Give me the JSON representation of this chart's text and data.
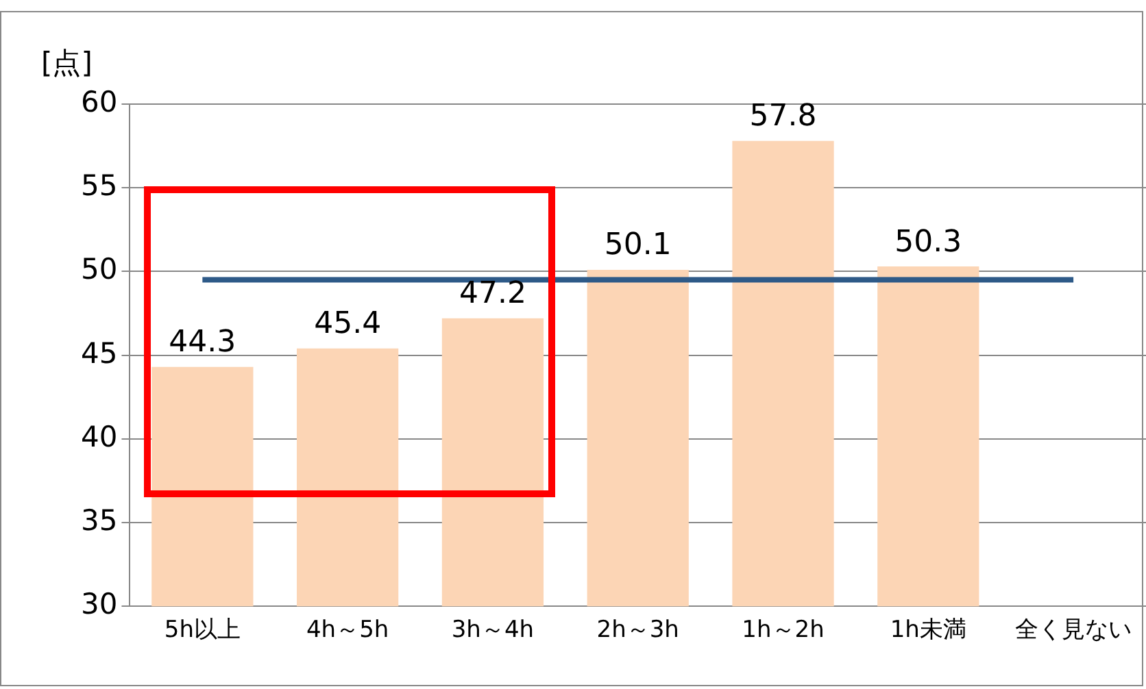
{
  "chart_data": {
    "type": "bar",
    "ylabel": "[点]",
    "categories": [
      "5h以上",
      "4h～5h",
      "3h～4h",
      "2h～3h",
      "1h～2h",
      "1h未満",
      "全く見ない"
    ],
    "values": [
      44.3,
      45.4,
      47.2,
      50.1,
      57.8,
      50.3,
      null
    ],
    "color": "#fcd5b5",
    "ylim": [
      30,
      60
    ],
    "yticks": [
      30,
      35,
      40,
      45,
      50,
      55,
      60
    ],
    "grid": "y",
    "data_labels": true,
    "legend": false,
    "ref_lines": [
      {
        "axis": "y",
        "value": 49.5,
        "color": "#2e5a88"
      }
    ]
  }
}
